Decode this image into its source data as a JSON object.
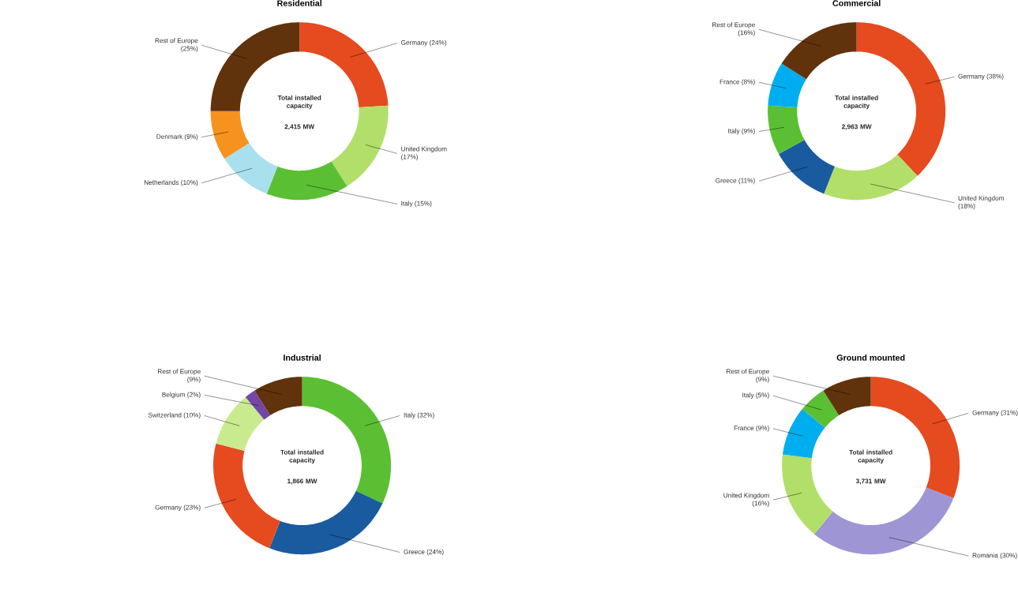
{
  "chart_data": [
    {
      "type": "donut",
      "title": "Residential",
      "categories": [
        "Germany",
        "United Kingdom",
        "Italy",
        "Netherlands",
        "Denmark",
        "Rest of Europe"
      ],
      "values": [
        24,
        17,
        15,
        10,
        9,
        25
      ],
      "value_labels": [
        "(24%)",
        "(17%)",
        "(15%)",
        "(10%)",
        "(9%)",
        "(25%)"
      ],
      "colors": [
        "#e64a1f",
        "#b2df6a",
        "#5bbf33",
        "#a8e0ee",
        "#f6921e",
        "#61330c"
      ],
      "annotations": [
        "Total installed capacity",
        "2,415 MW"
      ]
    },
    {
      "type": "donut",
      "title": "Commercial",
      "categories": [
        "Germany",
        "United Kingdom",
        "Greece",
        "Italy",
        "France",
        "Rest of Europe"
      ],
      "values": [
        38,
        18,
        11,
        9,
        8,
        16
      ],
      "value_labels": [
        "(38%)",
        "(18%)",
        "(11%)",
        "(9%)",
        "(8%)",
        "(16%)"
      ],
      "colors": [
        "#e64a1f",
        "#b2df6a",
        "#1a5ba0",
        "#5bbf33",
        "#00aeef",
        "#61330c"
      ],
      "annotations": [
        "Total installed capacity",
        "2,963 MW"
      ]
    },
    {
      "type": "donut",
      "title": "Industrial",
      "categories": [
        "Italy",
        "Greece",
        "Germany",
        "Switzerland",
        "Belgium",
        "Rest of Europe"
      ],
      "values": [
        32,
        24,
        23,
        10,
        2,
        9
      ],
      "value_labels": [
        "(32%)",
        "(24%)",
        "(23%)",
        "(10%)",
        "(2%)",
        "(9%)"
      ],
      "colors": [
        "#5bbf33",
        "#1a5ba0",
        "#e64a1f",
        "#c9ea8e",
        "#7446a8",
        "#61330c"
      ],
      "annotations": [
        "Total installed capacity",
        "1,866 MW"
      ]
    },
    {
      "type": "donut",
      "title": "Ground mounted",
      "categories": [
        "Germany",
        "Romania",
        "United Kingdom",
        "France",
        "Italy",
        "Rest of Europe"
      ],
      "values": [
        31,
        30,
        16,
        9,
        5,
        9
      ],
      "value_labels": [
        "(31%)",
        "(30%)",
        "(16%)",
        "(9%)",
        "(5%)",
        "(9%)"
      ],
      "colors": [
        "#e64a1f",
        "#9e96d4",
        "#b2df6a",
        "#00aeef",
        "#5bbf33",
        "#61330c"
      ],
      "annotations": [
        "Total installed capacity",
        "3,731 MW"
      ]
    }
  ]
}
